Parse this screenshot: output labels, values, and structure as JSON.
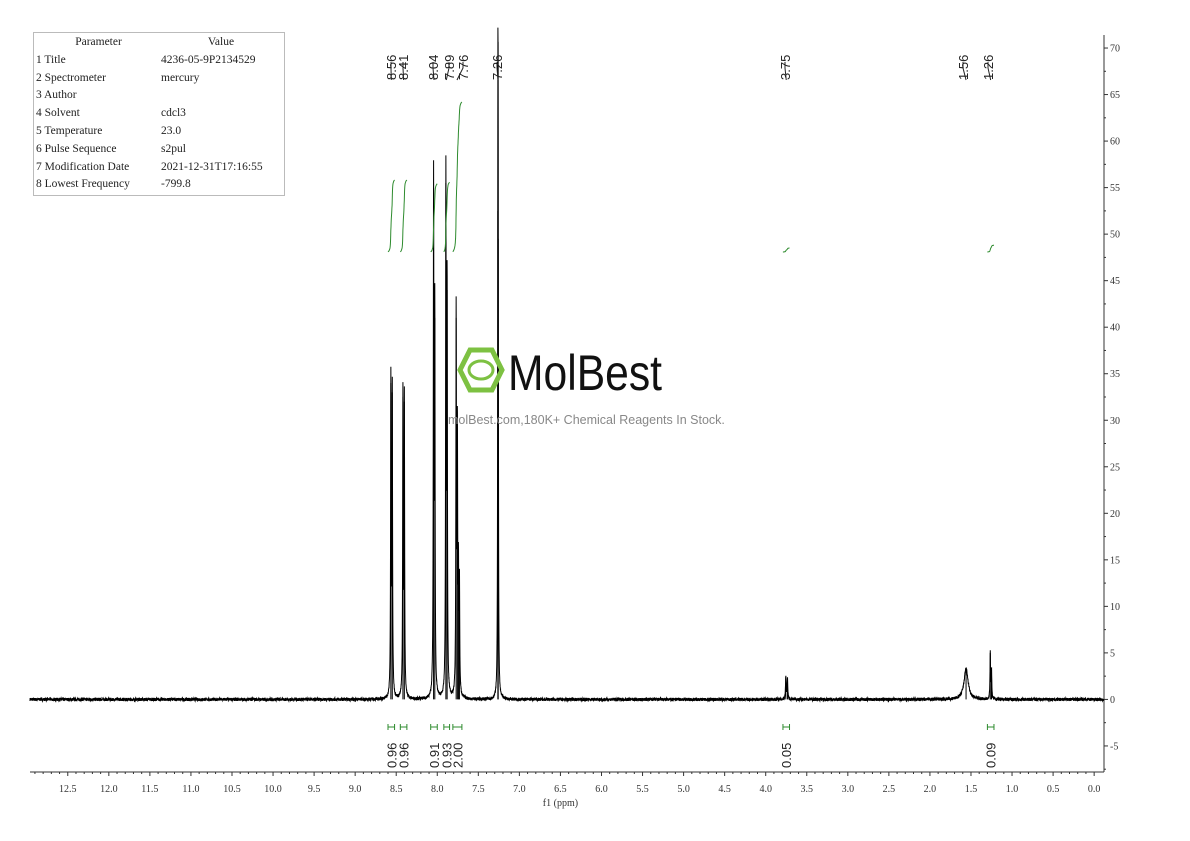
{
  "parameters": {
    "headers": [
      "Parameter",
      "Value"
    ],
    "rows": [
      {
        "name": "1 Title",
        "value": "4236-05-9P2134529"
      },
      {
        "name": "2 Spectrometer",
        "value": "mercury"
      },
      {
        "name": "3 Author",
        "value": ""
      },
      {
        "name": "4 Solvent",
        "value": "cdcl3"
      },
      {
        "name": "5 Temperature",
        "value": "23.0"
      },
      {
        "name": "6 Pulse Sequence",
        "value": "s2pul"
      },
      {
        "name": "7 Modification Date",
        "value": "2021-12-31T17:16:55"
      },
      {
        "name": "8 Lowest Frequency",
        "value": "-799.8"
      }
    ]
  },
  "watermark": {
    "logo_text": "MolBest",
    "tagline": "molBest.com,180K+ Chemical Reagents In Stock.",
    "color": "#7dc142"
  },
  "chart_data": {
    "type": "line",
    "title": "",
    "xlabel": "f1 (ppm)",
    "ylabel": "",
    "xlim": [
      12.96,
      -0.12
    ],
    "ylim": [
      -7.8,
      71.4
    ],
    "x_reversed": true,
    "x_ticks": [
      "12.5",
      "12.0",
      "11.5",
      "11.0",
      "10.5",
      "10.0",
      "9.5",
      "9.0",
      "8.5",
      "8.0",
      "7.5",
      "7.0",
      "6.5",
      "6.0",
      "5.5",
      "5.0",
      "4.5",
      "4.0",
      "3.5",
      "3.0",
      "2.5",
      "2.0",
      "1.5",
      "1.0",
      "0.5",
      "0.0"
    ],
    "y_ticks": [
      "70",
      "65",
      "60",
      "55",
      "50",
      "45",
      "40",
      "35",
      "30",
      "25",
      "20",
      "15",
      "10",
      "5",
      "0",
      "-5"
    ],
    "y_axis_position": "right",
    "grid": false,
    "line_color": "#000000",
    "integral_color": "#2e8b2e",
    "peaks": [
      {
        "ppm": 8.565,
        "height": 34.0,
        "width": 0.004
      },
      {
        "ppm": 8.548,
        "height": 33.0,
        "width": 0.004
      },
      {
        "ppm": 8.418,
        "height": 32.5,
        "width": 0.004
      },
      {
        "ppm": 8.401,
        "height": 32.0,
        "width": 0.004
      },
      {
        "ppm": 8.045,
        "height": 55.0,
        "width": 0.004
      },
      {
        "ppm": 8.03,
        "height": 41.0,
        "width": 0.004
      },
      {
        "ppm": 7.895,
        "height": 55.5,
        "width": 0.004
      },
      {
        "ppm": 7.88,
        "height": 44.0,
        "width": 0.004
      },
      {
        "ppm": 7.77,
        "height": 41.0,
        "width": 0.004
      },
      {
        "ppm": 7.755,
        "height": 28.0,
        "width": 0.004
      },
      {
        "ppm": 7.742,
        "height": 12.5,
        "width": 0.004
      },
      {
        "ppm": 7.73,
        "height": 12.0,
        "width": 0.004
      },
      {
        "ppm": 7.262,
        "height": 52.5,
        "width": 0.003
      },
      {
        "ppm": 7.258,
        "height": 49.5,
        "width": 0.003
      },
      {
        "ppm": 3.755,
        "height": 2.4,
        "width": 0.005
      },
      {
        "ppm": 3.735,
        "height": 2.2,
        "width": 0.005
      },
      {
        "ppm": 1.56,
        "height": 3.3,
        "width": 0.03
      },
      {
        "ppm": 1.265,
        "height": 5.0,
        "width": 0.004
      },
      {
        "ppm": 1.25,
        "height": 3.2,
        "width": 0.004
      }
    ],
    "peak_labels": [
      "8.56",
      "8.41",
      "8.04",
      "7.89",
      "7.76",
      "7.26",
      "3.75",
      "1.56",
      "1.26"
    ],
    "integrals": [
      {
        "from": 8.6,
        "to": 8.52,
        "value": "0.96"
      },
      {
        "from": 8.45,
        "to": 8.37,
        "value": "0.96"
      },
      {
        "from": 8.08,
        "to": 8.0,
        "value": "0.91"
      },
      {
        "from": 7.92,
        "to": 7.85,
        "value": "0.93"
      },
      {
        "from": 7.81,
        "to": 7.7,
        "value": "2.00"
      },
      {
        "from": 3.79,
        "to": 3.71,
        "value": "0.05"
      },
      {
        "from": 1.3,
        "to": 1.22,
        "value": "0.09"
      }
    ]
  }
}
